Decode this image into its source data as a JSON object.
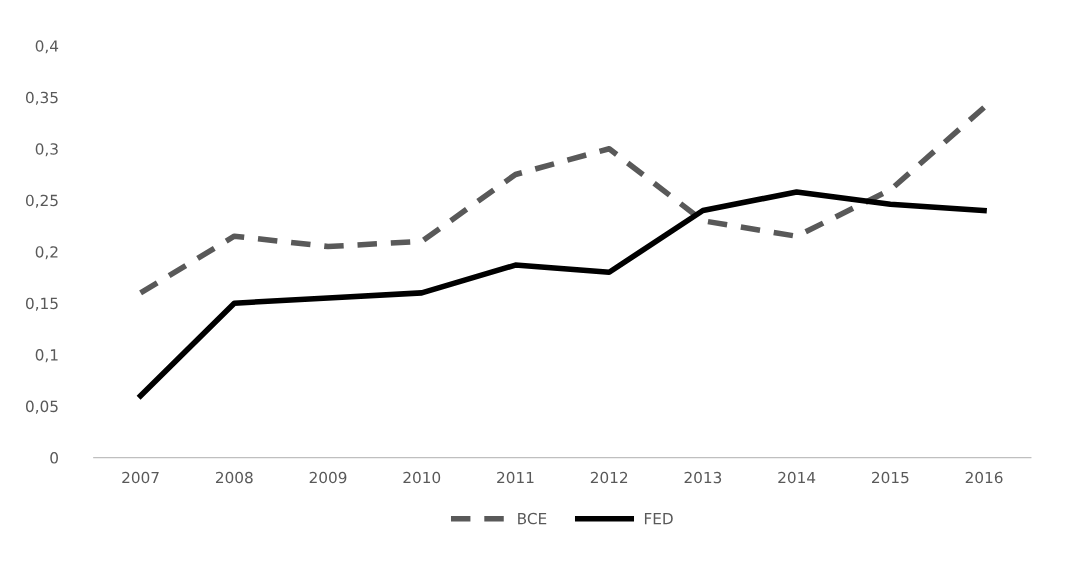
{
  "chart_data": {
    "type": "line",
    "categories": [
      "2007",
      "2008",
      "2009",
      "2010",
      "2011",
      "2012",
      "2013",
      "2014",
      "2015",
      "2016"
    ],
    "series": [
      {
        "name": "BCE",
        "color": "#595959",
        "line_style": "dashed",
        "values": [
          0.16,
          0.215,
          0.205,
          0.21,
          0.275,
          0.3,
          0.23,
          0.215,
          0.26,
          0.34
        ]
      },
      {
        "name": "FED",
        "color": "#000000",
        "line_style": "solid",
        "values": [
          0.06,
          0.15,
          0.155,
          0.16,
          0.187,
          0.18,
          0.24,
          0.258,
          0.246,
          0.24
        ]
      }
    ],
    "ylim": [
      0,
      0.4
    ],
    "yticks": [
      {
        "value": 0,
        "label": "0"
      },
      {
        "value": 0.05,
        "label": "0,05"
      },
      {
        "value": 0.1,
        "label": "0,1"
      },
      {
        "value": 0.15,
        "label": "0,15"
      },
      {
        "value": 0.2,
        "label": "0,2"
      },
      {
        "value": 0.25,
        "label": "0,25"
      },
      {
        "value": 0.3,
        "label": "0,3"
      },
      {
        "value": 0.35,
        "label": "0,35"
      },
      {
        "value": 0.4,
        "label": "0,4"
      }
    ],
    "grid": false,
    "legend": "bottom"
  }
}
